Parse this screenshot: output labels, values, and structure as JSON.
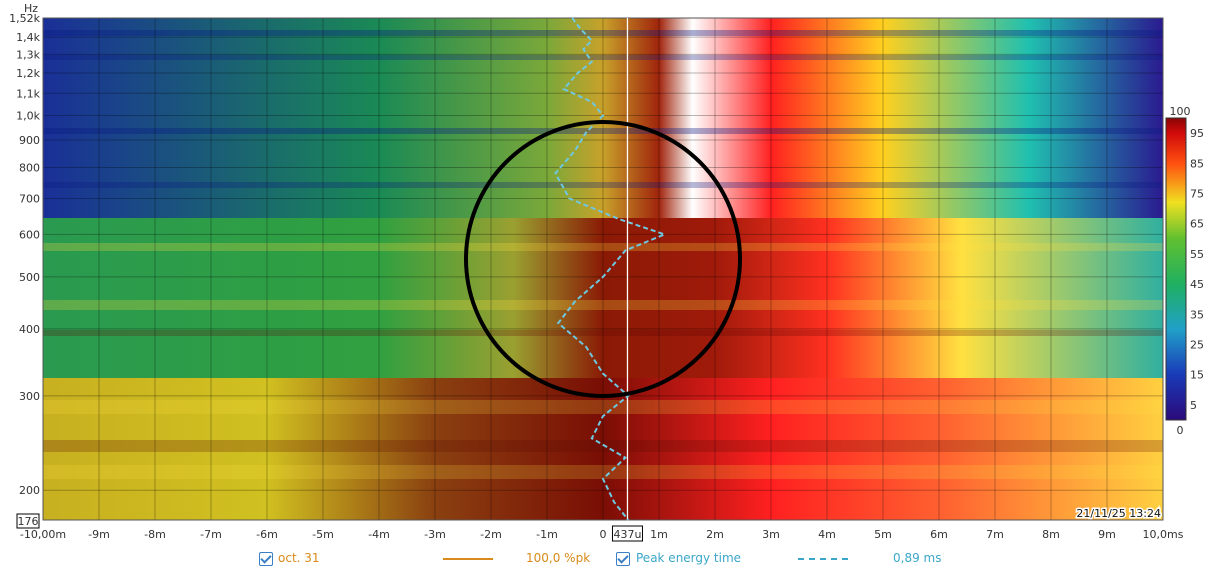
{
  "chart_data": {
    "type": "heatmap",
    "title": "",
    "xlabel": "",
    "ylabel": "Hz",
    "x_unit": "ms",
    "xlim": [
      -10,
      10
    ],
    "ylim": [
      176,
      1520
    ],
    "y_scale": "log",
    "x_ticks": [
      "-10,00m",
      "-9m",
      "-8m",
      "-7m",
      "-6m",
      "-5m",
      "-4m",
      "-3m",
      "-2m",
      "-1m",
      "0",
      "1m",
      "2m",
      "3m",
      "4m",
      "5m",
      "6m",
      "7m",
      "8m",
      "9m",
      "10,0ms"
    ],
    "x_tick_values": [
      -10,
      -9,
      -8,
      -7,
      -6,
      -5,
      -4,
      -3,
      -2,
      -1,
      0,
      1,
      2,
      3,
      4,
      5,
      6,
      7,
      8,
      9,
      10
    ],
    "y_ticks": [
      {
        "label": "1,52k",
        "value": 1520
      },
      {
        "label": "1,4k",
        "value": 1400
      },
      {
        "label": "1,3k",
        "value": 1300
      },
      {
        "label": "1,2k",
        "value": 1200
      },
      {
        "label": "1,1k",
        "value": 1100
      },
      {
        "label": "1,0k",
        "value": 1000
      },
      {
        "label": "900",
        "value": 900
      },
      {
        "label": "800",
        "value": 800
      },
      {
        "label": "700",
        "value": 700
      },
      {
        "label": "600",
        "value": 600
      },
      {
        "label": "500",
        "value": 500
      },
      {
        "label": "400",
        "value": 400
      },
      {
        "label": "300",
        "value": 300
      },
      {
        "label": "200",
        "value": 200
      }
    ],
    "y_min_label": "176",
    "cursor": {
      "x": 0.437,
      "label": "437u"
    },
    "colorbar": {
      "min": 0,
      "max": 100,
      "ticks": [
        "100",
        "95",
        "85",
        "75",
        "65",
        "55",
        "45",
        "35",
        "25",
        "15",
        "5",
        "0"
      ],
      "tick_values": [
        100,
        95,
        85,
        75,
        65,
        55,
        45,
        35,
        25,
        15,
        5,
        0
      ]
    },
    "timestamp": "21/11/25 13:24",
    "annotation_circle": {
      "center_ms": 0,
      "center_hz": 540,
      "label": ""
    },
    "peak_energy_time": [
      {
        "hz": 1520,
        "ms": -0.55
      },
      {
        "hz": 1450,
        "ms": -0.4
      },
      {
        "hz": 1380,
        "ms": -0.2
      },
      {
        "hz": 1330,
        "ms": -0.35
      },
      {
        "hz": 1260,
        "ms": -0.2
      },
      {
        "hz": 1200,
        "ms": -0.45
      },
      {
        "hz": 1120,
        "ms": -0.7
      },
      {
        "hz": 1060,
        "ms": -0.2
      },
      {
        "hz": 1000,
        "ms": 0.0
      },
      {
        "hz": 930,
        "ms": -0.3
      },
      {
        "hz": 860,
        "ms": -0.5
      },
      {
        "hz": 780,
        "ms": -0.85
      },
      {
        "hz": 700,
        "ms": -0.6
      },
      {
        "hz": 640,
        "ms": 0.3
      },
      {
        "hz": 600,
        "ms": 1.1
      },
      {
        "hz": 560,
        "ms": 0.4
      },
      {
        "hz": 500,
        "ms": 0.0
      },
      {
        "hz": 450,
        "ms": -0.5
      },
      {
        "hz": 410,
        "ms": -0.8
      },
      {
        "hz": 370,
        "ms": -0.3
      },
      {
        "hz": 330,
        "ms": 0.0
      },
      {
        "hz": 300,
        "ms": 0.45
      },
      {
        "hz": 275,
        "ms": 0.0
      },
      {
        "hz": 250,
        "ms": -0.2
      },
      {
        "hz": 230,
        "ms": 0.4
      },
      {
        "hz": 210,
        "ms": 0.0
      },
      {
        "hz": 190,
        "ms": 0.2
      },
      {
        "hz": 176,
        "ms": 0.45
      }
    ]
  },
  "legend": {
    "item1_label": "oct. 31",
    "item1_value": "100,0 %pk",
    "item2_label": "Peak energy time",
    "item2_value": "0,89 ms",
    "color_orange": "#d98a1a",
    "color_cyan": "#3aa7c9"
  }
}
